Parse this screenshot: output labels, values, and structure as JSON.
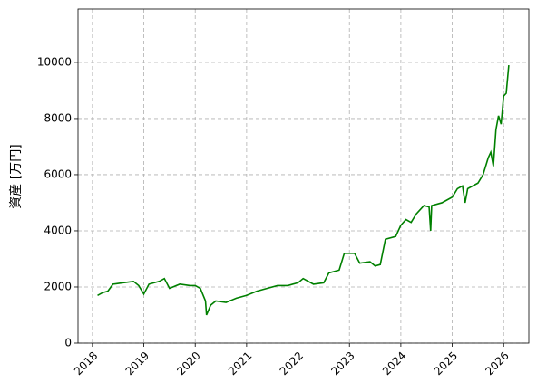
{
  "chart_data": {
    "type": "line",
    "ylabel": "資産 [万円]",
    "x": [
      2018.1,
      2018.2,
      2018.3,
      2018.4,
      2018.6,
      2018.8,
      2018.9,
      2019.0,
      2019.1,
      2019.3,
      2019.4,
      2019.5,
      2019.7,
      2019.9,
      2020.0,
      2020.1,
      2020.2,
      2020.22,
      2020.3,
      2020.4,
      2020.6,
      2020.8,
      2021.0,
      2021.2,
      2021.4,
      2021.6,
      2021.8,
      2022.0,
      2022.1,
      2022.3,
      2022.5,
      2022.6,
      2022.8,
      2022.9,
      2023.1,
      2023.2,
      2023.4,
      2023.5,
      2023.6,
      2023.7,
      2023.9,
      2024.0,
      2024.1,
      2024.2,
      2024.3,
      2024.45,
      2024.55,
      2024.58,
      2024.6,
      2024.8,
      2025.0,
      2025.1,
      2025.2,
      2025.25,
      2025.3,
      2025.5,
      2025.6,
      2025.7,
      2025.75,
      2025.8,
      2025.85,
      2025.9,
      2025.95,
      2026.0,
      2026.05,
      2026.1
    ],
    "series": [
      {
        "name": "資産",
        "color": "#008000",
        "values": [
          1700,
          1800,
          1850,
          2100,
          2150,
          2200,
          2050,
          1750,
          2100,
          2200,
          2300,
          1950,
          2100,
          2050,
          2050,
          1950,
          1500,
          1000,
          1350,
          1500,
          1450,
          1600,
          1700,
          1850,
          1950,
          2050,
          2050,
          2150,
          2300,
          2100,
          2150,
          2500,
          2600,
          3200,
          3200,
          2850,
          2900,
          2750,
          2800,
          3700,
          3800,
          4200,
          4400,
          4300,
          4600,
          4900,
          4850,
          4000,
          4900,
          5000,
          5200,
          5500,
          5600,
          5000,
          5500,
          5700,
          6000,
          6600,
          6800,
          6300,
          7600,
          8100,
          7800,
          8800,
          8900,
          9900
        ]
      }
    ],
    "xlim": [
      2017.72,
      2026.49
    ],
    "xticks": [
      2018,
      2019,
      2020,
      2021,
      2022,
      2023,
      2024,
      2025,
      2026
    ],
    "ylim": [
      0,
      11900
    ],
    "yticks": [
      0,
      2000,
      4000,
      6000,
      8000,
      10000
    ],
    "grid": true
  }
}
